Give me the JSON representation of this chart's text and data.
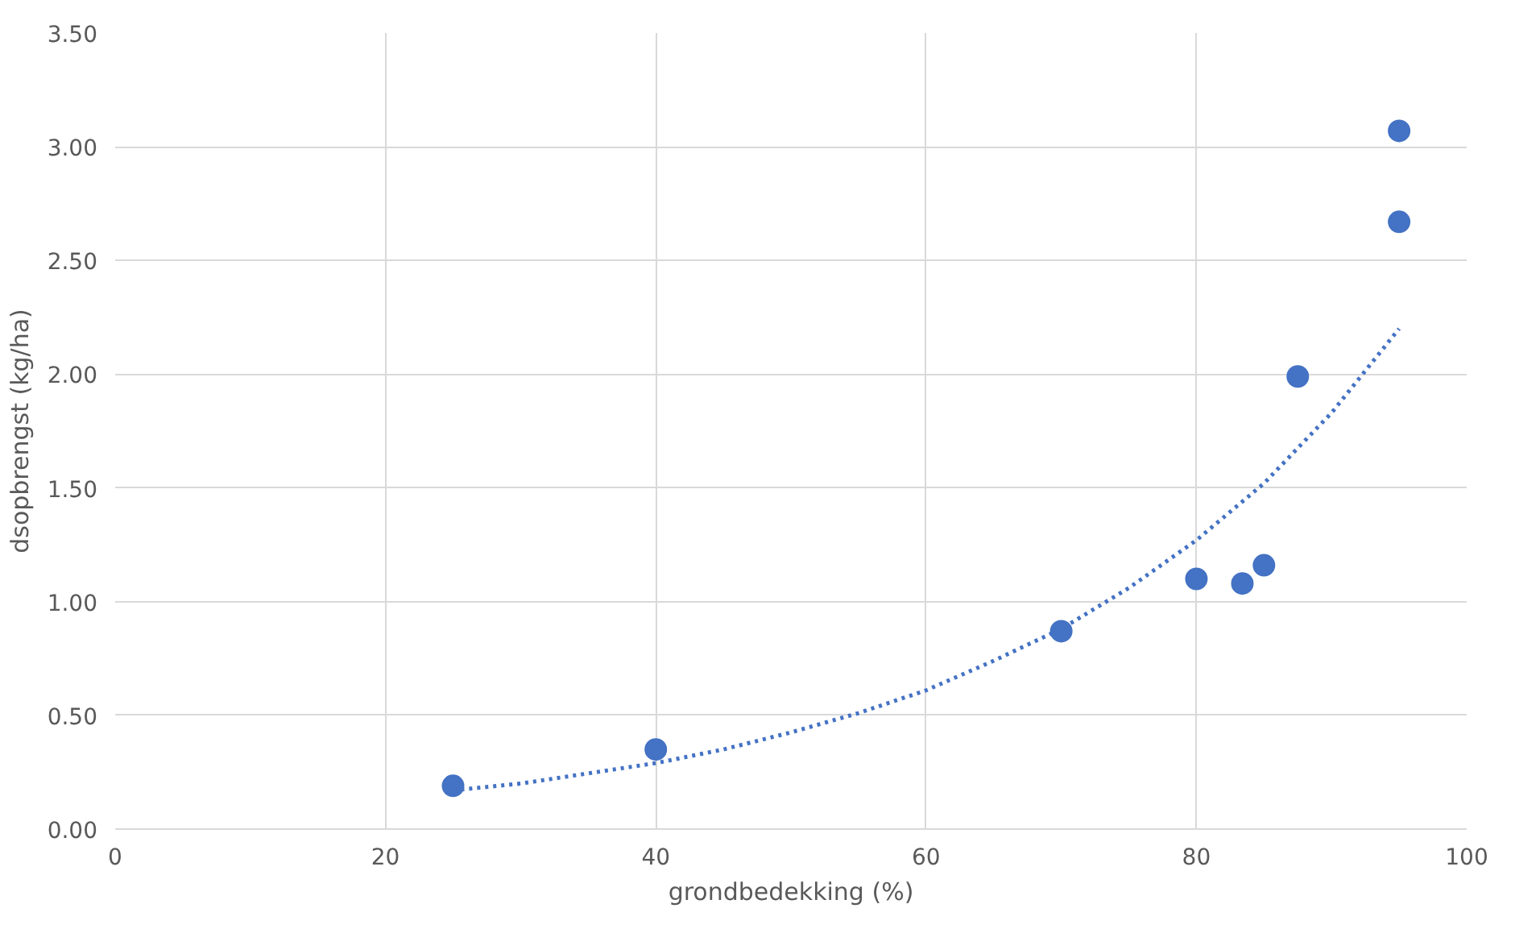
{
  "chart_data": {
    "type": "scatter",
    "xlabel": "grondbedekking (%)",
    "ylabel": "dsopbrengst (kg/ha)",
    "xlim": [
      0,
      100
    ],
    "xticks": [
      0,
      20,
      40,
      60,
      80,
      100
    ],
    "ylim": [
      0,
      3.5
    ],
    "yticks": [
      {
        "value": 0,
        "label": "0.00"
      },
      {
        "value": 0.5,
        "label": "0.50"
      },
      {
        "value": 1,
        "label": "1.00"
      },
      {
        "value": 1.5,
        "label": "1.50"
      },
      {
        "value": 2,
        "label": "2.00"
      },
      {
        "value": 2.5,
        "label": "2.50"
      },
      {
        "value": 3,
        "label": "3.00"
      },
      {
        "value": 3.5,
        "label": "3.50"
      }
    ],
    "grid": true,
    "series": [
      {
        "marker": "circle",
        "color": "#4472c4",
        "x": [
          25,
          40,
          70,
          80,
          83.4,
          85,
          87.5,
          95,
          95
        ],
        "values": [
          0.19,
          0.35,
          0.87,
          1.1,
          1.08,
          1.16,
          1.99,
          3.07,
          2.67
        ]
      },
      {
        "type": "line",
        "marker": "none",
        "color": "#4472c4",
        "line_style": "dotted",
        "x": [
          25,
          30,
          35,
          40,
          45,
          50,
          55,
          60,
          65,
          70,
          75,
          80,
          85,
          90,
          95
        ],
        "values": [
          0.17,
          0.2,
          0.245,
          0.29,
          0.35,
          0.425,
          0.51,
          0.61,
          0.74,
          0.88,
          1.06,
          1.27,
          1.52,
          1.83,
          2.2
        ]
      }
    ]
  }
}
